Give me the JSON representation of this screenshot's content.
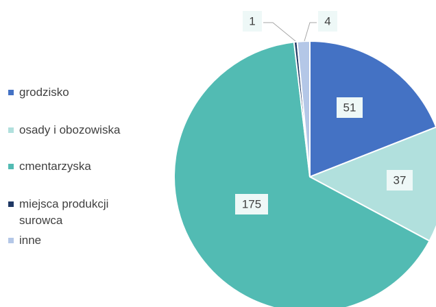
{
  "chart_data": {
    "type": "pie",
    "categories": [
      "grodzisko",
      "osady i obozowiska",
      "cmentarzyska",
      "miejsca produkcji surowca",
      "inne"
    ],
    "values": [
      51,
      37,
      175,
      1,
      4
    ],
    "colors": [
      "#4472c4",
      "#b1e0dd",
      "#52bbb3",
      "#1f3864",
      "#b4c7e7"
    ],
    "legend": "left"
  }
}
